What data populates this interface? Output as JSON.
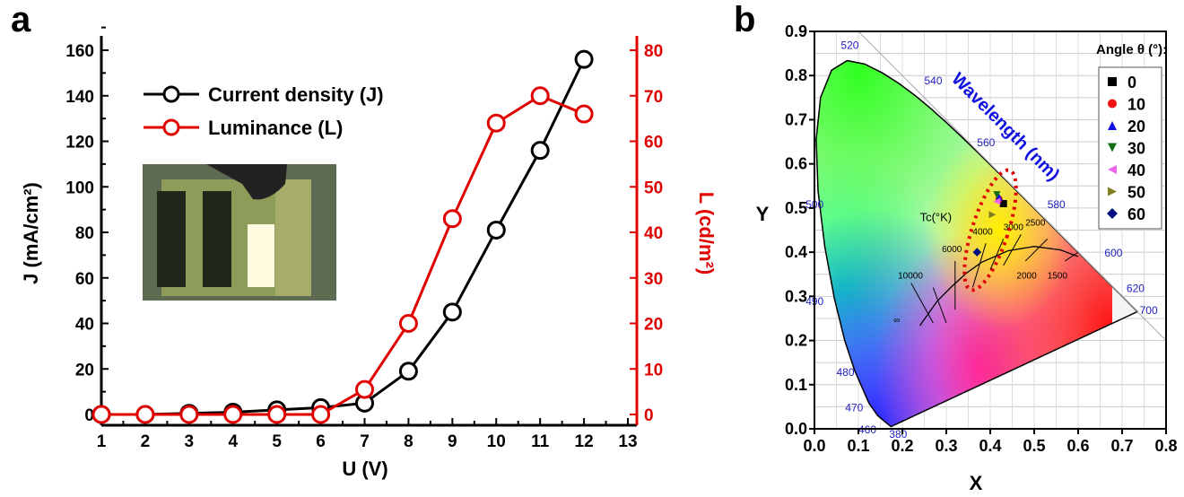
{
  "panels": {
    "a": "a",
    "b": "b"
  },
  "chart_data": [
    {
      "type": "line",
      "panel": "a",
      "xlabel": "U (V)",
      "ylabel": "J (mA/cm²)",
      "y2label": "L (cd/m²)",
      "xlim": [
        1,
        13
      ],
      "ylim": [
        0,
        160
      ],
      "y2lim": [
        0,
        80
      ],
      "xticks": [
        1,
        2,
        3,
        4,
        5,
        6,
        7,
        8,
        9,
        10,
        11,
        12,
        13
      ],
      "yticks": [
        0,
        20,
        40,
        60,
        80,
        100,
        120,
        140,
        160
      ],
      "y2ticks": [
        0,
        10,
        20,
        30,
        40,
        50,
        60,
        70,
        80
      ],
      "x": [
        1,
        2,
        3,
        4,
        5,
        6,
        7,
        8,
        9,
        10,
        11,
        12
      ],
      "series": [
        {
          "name": "Current density (J)",
          "axis": "left",
          "color": "#000000",
          "values": [
            0,
            0,
            0.5,
            1,
            2,
            3,
            5,
            19,
            45,
            81,
            116,
            156
          ]
        },
        {
          "name": "Luminance (L)",
          "axis": "right",
          "color": "#e00000",
          "values": [
            0,
            0,
            0,
            0,
            0,
            0,
            5.5,
            20,
            43,
            64,
            70,
            66
          ]
        }
      ],
      "legend": "top-left",
      "inset": "photo of glowing device"
    },
    {
      "type": "scatter",
      "panel": "b",
      "xlabel": "X",
      "ylabel": "Y",
      "xlim": [
        0,
        0.8
      ],
      "ylim": [
        0,
        0.9
      ],
      "xticks": [
        "0.0",
        "0.1",
        "0.2",
        "0.3",
        "0.4",
        "0.5",
        "0.6",
        "0.7",
        "0.8"
      ],
      "yticks": [
        "0.0",
        "0.1",
        "0.2",
        "0.3",
        "0.4",
        "0.5",
        "0.6",
        "0.7",
        "0.8",
        "0.9"
      ],
      "grid": true,
      "legend_title": "Angle θ (°):",
      "legend": "top-right",
      "series": [
        {
          "name": "0",
          "marker": "square",
          "color": "#000000",
          "x": 0.43,
          "y": 0.51
        },
        {
          "name": "10",
          "marker": "circle",
          "color": "#ee1111",
          "x": 0.42,
          "y": 0.52
        },
        {
          "name": "20",
          "marker": "triangle-up",
          "color": "#1010e0",
          "x": 0.42,
          "y": 0.525
        },
        {
          "name": "30",
          "marker": "triangle-down",
          "color": "#107010",
          "x": 0.415,
          "y": 0.53
        },
        {
          "name": "40",
          "marker": "triangle-left",
          "color": "#ee66ee",
          "x": 0.415,
          "y": 0.515
        },
        {
          "name": "50",
          "marker": "triangle-right",
          "color": "#808020",
          "x": 0.405,
          "y": 0.485
        },
        {
          "name": "60",
          "marker": "diamond",
          "color": "#001080",
          "x": 0.37,
          "y": 0.4
        }
      ],
      "annotations": {
        "wavelength_title": "Wavelength (nm)",
        "tc_label": "Tc(°K)",
        "wavelengths": [
          "380",
          "460",
          "470",
          "480",
          "490",
          "500",
          "520",
          "540",
          "560",
          "580",
          "600",
          "620",
          "700"
        ],
        "temperatures": [
          "10000",
          "6000",
          "4000",
          "3000",
          "2500",
          "2000",
          "1500",
          "∞"
        ]
      }
    }
  ]
}
